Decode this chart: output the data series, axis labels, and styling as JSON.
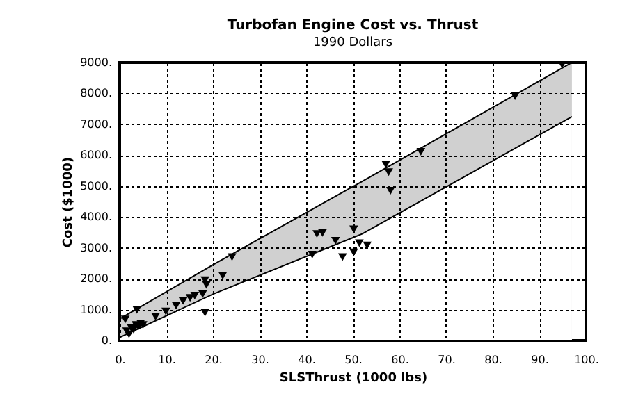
{
  "chart_data": {
    "type": "scatter",
    "title": "Turbofan Engine Cost vs. Thrust",
    "subtitle": "1990 Dollars",
    "xlabel": "SLSThrust (1000 lbs)",
    "ylabel": "Cost ($1000)",
    "xlim": [
      0,
      100
    ],
    "ylim": [
      0,
      9000
    ],
    "xticks": [
      {
        "value": 0,
        "label": "0."
      },
      {
        "value": 10,
        "label": "10."
      },
      {
        "value": 20,
        "label": "20."
      },
      {
        "value": 30,
        "label": "30."
      },
      {
        "value": 40,
        "label": "40."
      },
      {
        "value": 50,
        "label": "50."
      },
      {
        "value": 60,
        "label": "60."
      },
      {
        "value": 70,
        "label": "70."
      },
      {
        "value": 80,
        "label": "80."
      },
      {
        "value": 90,
        "label": "90."
      },
      {
        "value": 100,
        "label": "100."
      }
    ],
    "yticks": [
      {
        "value": 0,
        "label": "0."
      },
      {
        "value": 1000,
        "label": "1000."
      },
      {
        "value": 2000,
        "label": "2000."
      },
      {
        "value": 3000,
        "label": "3000."
      },
      {
        "value": 4000,
        "label": "4000."
      },
      {
        "value": 5000,
        "label": "5000."
      },
      {
        "value": 6000,
        "label": "6000."
      },
      {
        "value": 7000,
        "label": "7000."
      },
      {
        "value": 8000,
        "label": "8000."
      },
      {
        "value": 9000,
        "label": "9000."
      }
    ],
    "grid": true,
    "series": [
      {
        "color": "#000000",
        "marker": "triangle",
        "x": [
          1.2,
          3.7,
          1.5,
          2,
          2.5,
          3,
          3.5,
          4,
          4.5,
          5,
          7.7,
          9.9,
          12.1,
          13.6,
          15.1,
          16.1,
          17.8,
          18.3,
          18.6,
          18.3,
          22.1,
          24.1,
          41.3,
          42.3,
          43.5,
          46.3,
          47.8,
          50.2,
          50.2,
          51.4,
          53.1,
          57.1,
          57.7,
          58.1,
          64.6,
          84.8,
          94.9
        ],
        "values": [
          680,
          990,
          300,
          200,
          400,
          350,
          500,
          450,
          550,
          500,
          770,
          940,
          1130,
          1280,
          1380,
          1450,
          1500,
          1950,
          1800,
          900,
          2100,
          2700,
          2780,
          3450,
          3480,
          3230,
          2700,
          2850,
          3600,
          3150,
          3080,
          5700,
          5450,
          4850,
          6110,
          7910,
          8930
        ]
      },
      {
        "type": "area",
        "color": "#d0d0d0",
        "x": [
          0,
          20,
          52,
          97
        ],
        "values": [
          700,
          2450,
          5150,
          9000
        ]
      },
      {
        "type": "area",
        "color": "#ffffff",
        "x": [
          0,
          20,
          52,
          97
        ],
        "values": [
          100,
          1500,
          3450,
          7250
        ]
      }
    ]
  }
}
